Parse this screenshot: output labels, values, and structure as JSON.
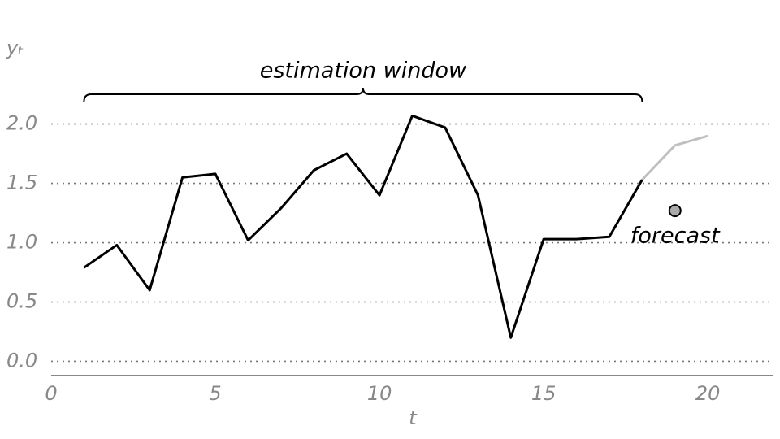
{
  "chart_data": {
    "type": "line",
    "xlabel": "t",
    "ylabel": "yₜ",
    "xlim": [
      0,
      22
    ],
    "ylim": [
      -0.12,
      2.6
    ],
    "xticks": [
      0,
      5,
      10,
      15,
      20
    ],
    "yticks": [
      {
        "value": 0,
        "label": "0.0"
      },
      {
        "value": 0.5,
        "label": "0.5"
      },
      {
        "value": 1,
        "label": "1.0"
      },
      {
        "value": 1.5,
        "label": "1.5"
      },
      {
        "value": 2,
        "label": "2.0"
      }
    ],
    "grid": true,
    "series": [
      {
        "color": "#000000",
        "x": [
          1,
          2,
          3,
          4,
          5,
          6,
          7,
          8,
          9,
          10,
          11,
          12,
          13,
          14,
          15,
          16,
          17,
          18
        ],
        "values": [
          0.79,
          0.98,
          0.6,
          1.55,
          1.58,
          1.02,
          1.29,
          1.61,
          1.75,
          1.4,
          2.07,
          1.97,
          1.4,
          0.2,
          1.03,
          1.03,
          1.05,
          1.53
        ]
      },
      {
        "color": "#c0c0c0",
        "x": [
          18,
          19,
          20
        ],
        "values": [
          1.53,
          1.82,
          1.9
        ]
      }
    ],
    "points": {
      "color": "#a9a9a9",
      "x": [
        19
      ],
      "values": [
        1.27
      ]
    },
    "annotations": [
      {
        "text": "estimation window",
        "from": 1,
        "to": 18
      },
      {
        "text": "forecast",
        "x": 19,
        "y": 1.05
      }
    ]
  }
}
